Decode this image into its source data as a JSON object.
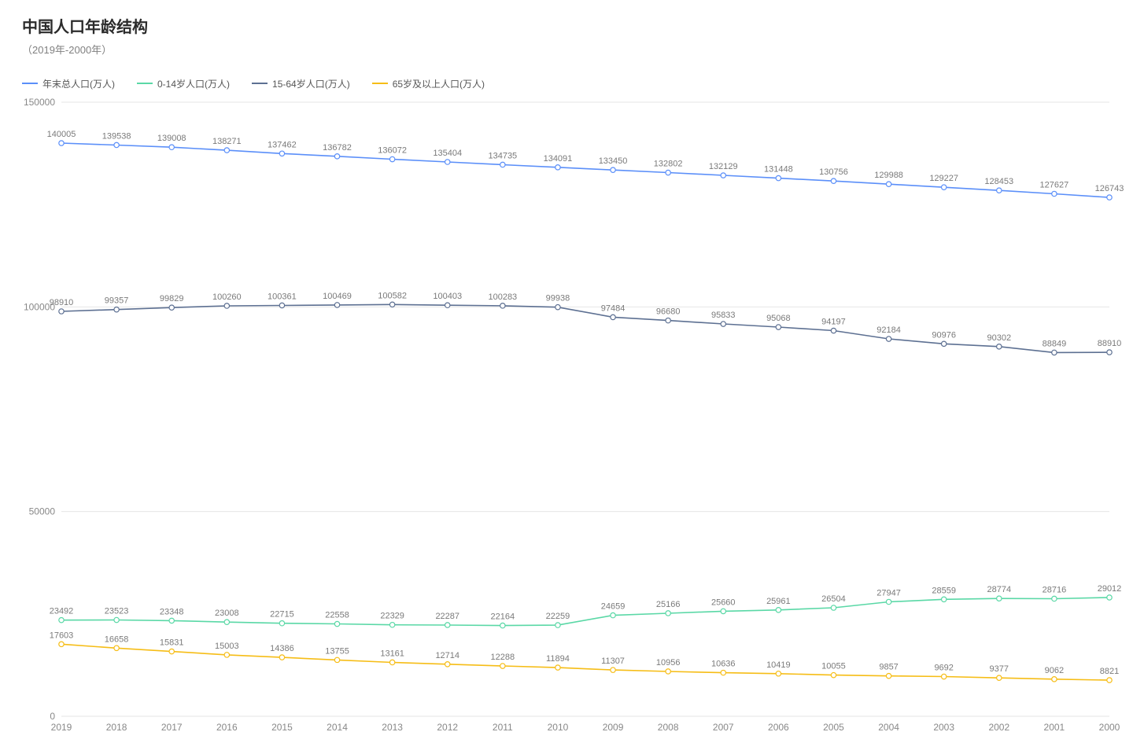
{
  "title": "中国人口年龄结构",
  "subtitle": "（2019年-2000年）",
  "chart": {
    "type": "line",
    "background_color": "#ffffff",
    "grid_color": "#e6e6e6",
    "axis_label_color": "#888888",
    "point_label_color": "#7a7a7a",
    "title_fontsize": 20,
    "subtitle_fontsize": 13,
    "legend_fontsize": 12,
    "axis_fontsize": 12,
    "point_label_fontsize": 11,
    "line_width": 1.6,
    "marker_size": 3.2,
    "marker_style": "circle-hollow",
    "x_labels": [
      "2019",
      "2018",
      "2017",
      "2016",
      "2015",
      "2014",
      "2013",
      "2012",
      "2011",
      "2010",
      "2009",
      "2008",
      "2007",
      "2006",
      "2005",
      "2004",
      "2003",
      "2002",
      "2001",
      "2000"
    ],
    "y_min": 0,
    "y_max": 150000,
    "y_ticks": [
      0,
      50000,
      100000,
      150000
    ],
    "series": [
      {
        "name": "年末总人口(万人)",
        "color": "#5b8ff9",
        "values": [
          140005,
          139538,
          139008,
          138271,
          137462,
          136782,
          136072,
          135404,
          134735,
          134091,
          133450,
          132802,
          132129,
          131448,
          130756,
          129988,
          129227,
          128453,
          127627,
          126743
        ]
      },
      {
        "name": "0-14岁人口(万人)",
        "color": "#5ad8a6",
        "values": [
          23492,
          23523,
          23348,
          23008,
          22715,
          22558,
          22329,
          22287,
          22164,
          22259,
          24659,
          25166,
          25660,
          25961,
          26504,
          27947,
          28559,
          28774,
          28716,
          29012
        ]
      },
      {
        "name": "15-64岁人口(万人)",
        "color": "#5d7092",
        "values": [
          98910,
          99357,
          99829,
          100260,
          100361,
          100469,
          100582,
          100403,
          100283,
          99938,
          97484,
          96680,
          95833,
          95068,
          94197,
          92184,
          90976,
          90302,
          88849,
          88910
        ]
      },
      {
        "name": "65岁及以上人口(万人)",
        "color": "#f6bd16",
        "values": [
          17603,
          16658,
          15831,
          15003,
          14386,
          13755,
          13161,
          12714,
          12288,
          11894,
          11307,
          10956,
          10636,
          10419,
          10055,
          9857,
          9692,
          9377,
          9062,
          8821
        ]
      }
    ]
  }
}
